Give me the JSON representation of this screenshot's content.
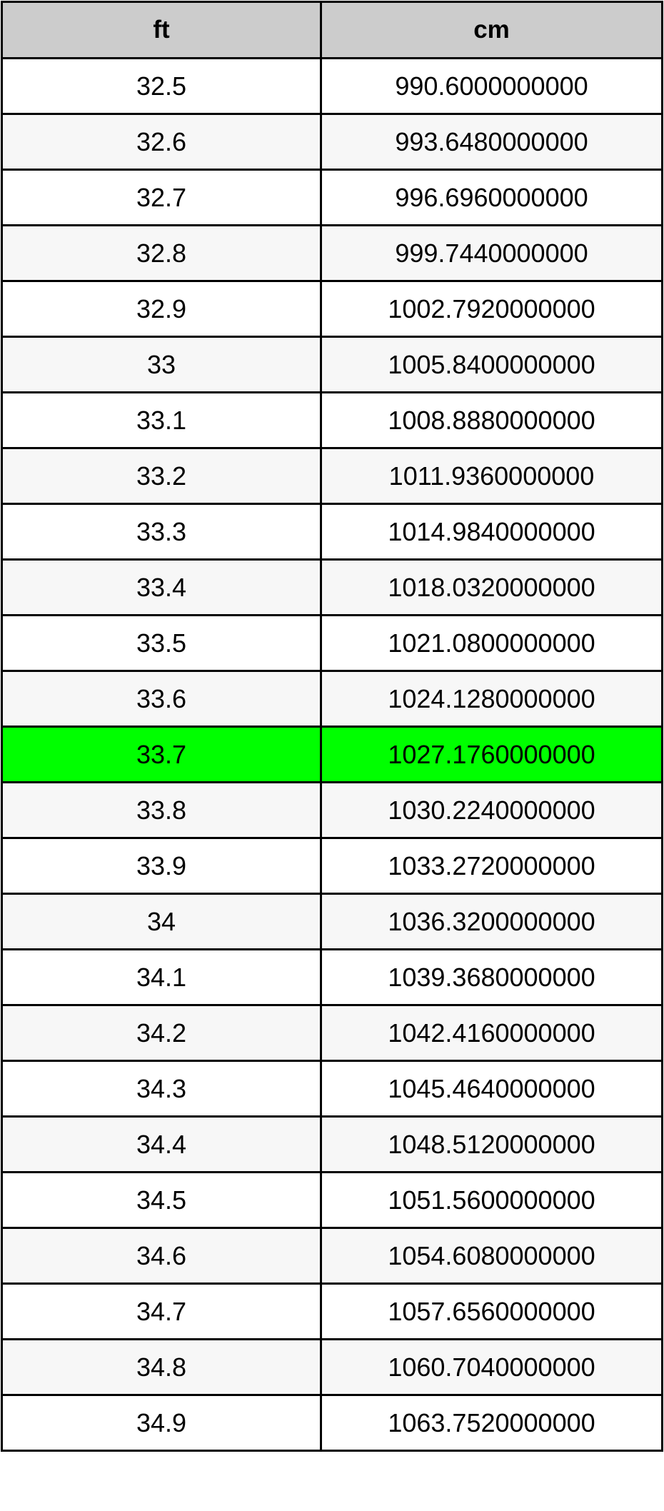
{
  "table": {
    "headers": [
      "ft",
      "cm"
    ],
    "highlight_color": "#00ff00",
    "highlighted_row": "33.7",
    "rows": [
      [
        "32.5",
        "990.6000000000"
      ],
      [
        "32.6",
        "993.6480000000"
      ],
      [
        "32.7",
        "996.6960000000"
      ],
      [
        "32.8",
        "999.7440000000"
      ],
      [
        "32.9",
        "1002.7920000000"
      ],
      [
        "33",
        "1005.8400000000"
      ],
      [
        "33.1",
        "1008.8880000000"
      ],
      [
        "33.2",
        "1011.9360000000"
      ],
      [
        "33.3",
        "1014.9840000000"
      ],
      [
        "33.4",
        "1018.0320000000"
      ],
      [
        "33.5",
        "1021.0800000000"
      ],
      [
        "33.6",
        "1024.1280000000"
      ],
      [
        "33.7",
        "1027.1760000000"
      ],
      [
        "33.8",
        "1030.2240000000"
      ],
      [
        "33.9",
        "1033.2720000000"
      ],
      [
        "34",
        "1036.3200000000"
      ],
      [
        "34.1",
        "1039.3680000000"
      ],
      [
        "34.2",
        "1042.4160000000"
      ],
      [
        "34.3",
        "1045.4640000000"
      ],
      [
        "34.4",
        "1048.5120000000"
      ],
      [
        "34.5",
        "1051.5600000000"
      ],
      [
        "34.6",
        "1054.6080000000"
      ],
      [
        "34.7",
        "1057.6560000000"
      ],
      [
        "34.8",
        "1060.7040000000"
      ],
      [
        "34.9",
        "1063.7520000000"
      ]
    ]
  }
}
